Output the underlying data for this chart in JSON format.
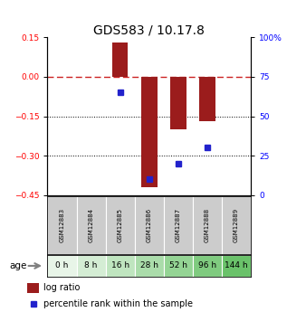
{
  "title": "GDS583 / 10.17.8",
  "samples": [
    "GSM12883",
    "GSM12884",
    "GSM12885",
    "GSM12886",
    "GSM12887",
    "GSM12888",
    "GSM12889"
  ],
  "ages": [
    "0 h",
    "8 h",
    "16 h",
    "28 h",
    "52 h",
    "96 h",
    "144 h"
  ],
  "log_ratios": [
    0,
    0,
    0.13,
    -0.42,
    -0.2,
    -0.17,
    0
  ],
  "percentile_ranks": [
    null,
    null,
    65,
    10,
    20,
    30,
    null
  ],
  "ylim_left": [
    -0.45,
    0.15
  ],
  "ylim_right": [
    0,
    100
  ],
  "left_yticks": [
    -0.45,
    -0.3,
    -0.15,
    0,
    0.15
  ],
  "right_yticks": [
    0,
    25,
    50,
    75,
    100
  ],
  "bar_color": "#9B1C1C",
  "dot_color": "#2222CC",
  "dashed_line_color": "#CC2222",
  "dotted_line_color": "#000000",
  "title_fontsize": 10,
  "age_colors": [
    "#e8f5e8",
    "#d4edd4",
    "#bfe5bf",
    "#aadcaa",
    "#94d494",
    "#7fcb7f",
    "#6ac26a"
  ],
  "gsm_bg_color": "#cccccc",
  "legend_log_ratio_color": "#9B1C1C",
  "legend_percentile_color": "#2222CC",
  "bar_width": 0.55
}
